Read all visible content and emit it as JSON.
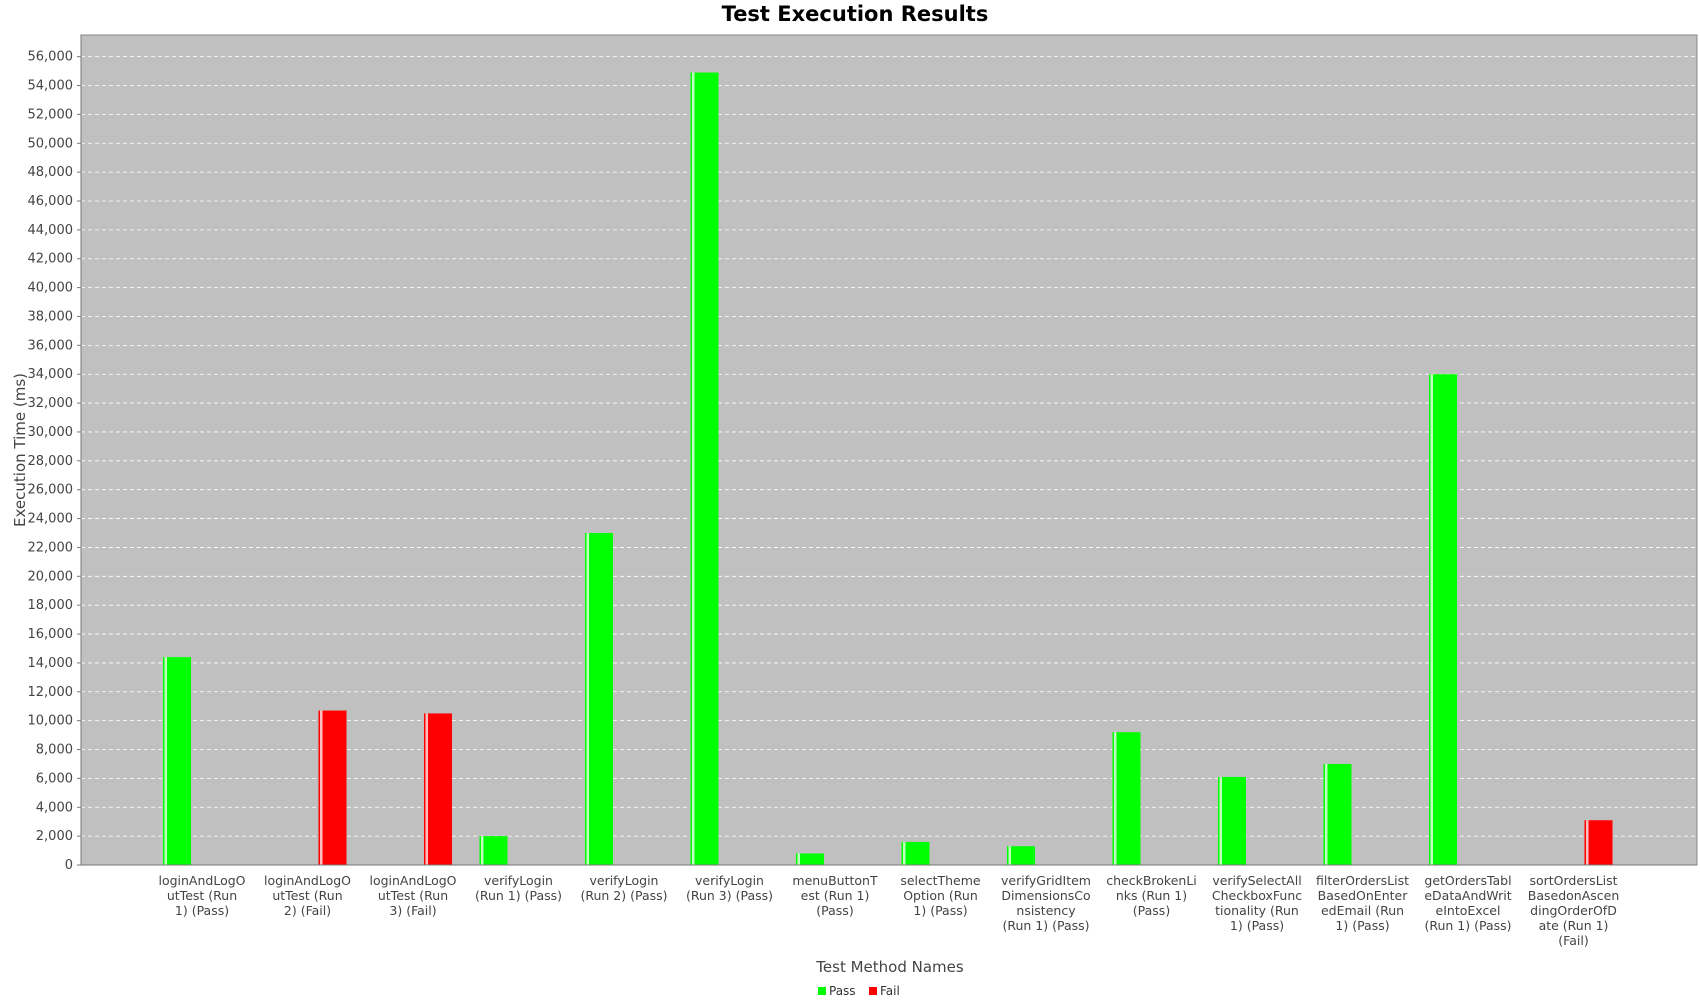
{
  "chart_data": {
    "type": "bar",
    "title": "Test Execution Results",
    "xlabel": "Test Method Names",
    "ylabel": "Execution Time (ms)",
    "ylim": [
      0,
      57500
    ],
    "ytick_step": 2000,
    "grid": true,
    "legend_position": "bottom-center",
    "categories": [
      [
        "loginAndLogO",
        "utTest (Run",
        "1) (Pass)"
      ],
      [
        "loginAndLogO",
        "utTest (Run",
        "2) (Fail)"
      ],
      [
        "loginAndLogO",
        "utTest (Run",
        "3) (Fail)"
      ],
      [
        "verifyLogin",
        "(Run 1) (Pass)"
      ],
      [
        "verifyLogin",
        "(Run 2) (Pass)"
      ],
      [
        "verifyLogin",
        "(Run 3) (Pass)"
      ],
      [
        "menuButtonT",
        "est (Run 1)",
        "(Pass)"
      ],
      [
        "selectTheme",
        "Option (Run",
        "1) (Pass)"
      ],
      [
        "verifyGridItem",
        "DimensionsCo",
        "nsistency",
        "(Run 1) (Pass)"
      ],
      [
        "checkBrokenLi",
        "nks (Run 1)",
        "(Pass)"
      ],
      [
        "verifySelectAll",
        "CheckboxFunc",
        "tionality (Run",
        "1) (Pass)"
      ],
      [
        "filterOrdersList",
        "BasedOnEnter",
        "edEmail (Run",
        "1) (Pass)"
      ],
      [
        "getOrdersTabl",
        "eDataAndWrit",
        "eIntoExcel",
        "(Run 1) (Pass)"
      ],
      [
        "sortOrdersList",
        "BasedonAscen",
        "dingOrderOfD",
        "ate (Run 1)",
        "(Fail)"
      ]
    ],
    "series": [
      {
        "name": "Pass",
        "color": "#00ff00",
        "values": [
          14400,
          null,
          null,
          2000,
          23000,
          54900,
          800,
          1600,
          1300,
          9200,
          6100,
          7000,
          34000,
          null
        ]
      },
      {
        "name": "Fail",
        "color": "#ff0000",
        "values": [
          null,
          10700,
          10500,
          null,
          null,
          null,
          null,
          null,
          null,
          null,
          null,
          null,
          null,
          3100
        ]
      }
    ]
  }
}
